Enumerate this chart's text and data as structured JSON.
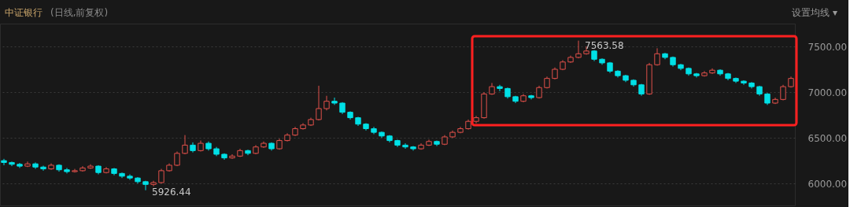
{
  "chart_data": {
    "type": "candlestick",
    "title": "中证银行",
    "subtitle": "(日线,前复权)",
    "annotations": [
      "7563.58",
      "5926.44",
      "设置均线 ▾"
    ],
    "categories": [
      null,
      null,
      null,
      null,
      null,
      null,
      null,
      null,
      null,
      null,
      null,
      null,
      null,
      null,
      null,
      null,
      null,
      null,
      null,
      null,
      null,
      null,
      null,
      null,
      null,
      null,
      null,
      null,
      null,
      null,
      null,
      null,
      null,
      null,
      null,
      null,
      null,
      null,
      null,
      null,
      null,
      null,
      null,
      null,
      null,
      null,
      null,
      null,
      null,
      null,
      null,
      null,
      null,
      null,
      null,
      null,
      null,
      null,
      null,
      null,
      null,
      null,
      null,
      null,
      null,
      null,
      null,
      null,
      null,
      null,
      null,
      null,
      null,
      null,
      null,
      null,
      null,
      null,
      null,
      null,
      null,
      null,
      null,
      null,
      null,
      null,
      null,
      null,
      null,
      null,
      null,
      null,
      null,
      null,
      null,
      null,
      null,
      null,
      null,
      null,
      null
    ],
    "ohlc": [
      [
        6250,
        6270,
        6200,
        6230
      ],
      [
        6230,
        6240,
        6190,
        6210
      ],
      [
        6210,
        6225,
        6170,
        6190
      ],
      [
        6190,
        6240,
        6180,
        6215
      ],
      [
        6215,
        6230,
        6160,
        6180
      ],
      [
        6180,
        6195,
        6140,
        6160
      ],
      [
        6160,
        6220,
        6150,
        6200
      ],
      [
        6200,
        6210,
        6130,
        6150
      ],
      [
        6150,
        6170,
        6110,
        6130
      ],
      [
        6130,
        6160,
        6120,
        6140
      ],
      [
        6140,
        6190,
        6130,
        6170
      ],
      [
        6170,
        6210,
        6160,
        6190
      ],
      [
        6190,
        6200,
        6100,
        6120
      ],
      [
        6120,
        6180,
        6110,
        6160
      ],
      [
        6160,
        6170,
        6090,
        6110
      ],
      [
        6110,
        6120,
        6060,
        6080
      ],
      [
        6080,
        6100,
        6040,
        6060
      ],
      [
        6060,
        6070,
        6000,
        6020
      ],
      [
        6020,
        6030,
        5926.44,
        5990
      ],
      [
        5990,
        6030,
        5970,
        6010
      ],
      [
        6010,
        6160,
        6000,
        6140
      ],
      [
        6140,
        6220,
        6130,
        6200
      ],
      [
        6200,
        6350,
        6190,
        6330
      ],
      [
        6330,
        6530,
        6320,
        6420
      ],
      [
        6420,
        6450,
        6340,
        6360
      ],
      [
        6360,
        6470,
        6350,
        6440
      ],
      [
        6440,
        6460,
        6360,
        6380
      ],
      [
        6380,
        6400,
        6300,
        6320
      ],
      [
        6320,
        6330,
        6260,
        6280
      ],
      [
        6280,
        6320,
        6270,
        6300
      ],
      [
        6300,
        6380,
        6290,
        6360
      ],
      [
        6360,
        6370,
        6310,
        6330
      ],
      [
        6330,
        6420,
        6320,
        6400
      ],
      [
        6400,
        6460,
        6390,
        6440
      ],
      [
        6440,
        6450,
        6360,
        6380
      ],
      [
        6380,
        6490,
        6370,
        6470
      ],
      [
        6470,
        6550,
        6460,
        6530
      ],
      [
        6530,
        6620,
        6520,
        6600
      ],
      [
        6600,
        6660,
        6590,
        6640
      ],
      [
        6640,
        6720,
        6630,
        6700
      ],
      [
        6700,
        7070,
        6690,
        6820
      ],
      [
        6820,
        6960,
        6800,
        6900
      ],
      [
        6900,
        6940,
        6860,
        6880
      ],
      [
        6880,
        6890,
        6760,
        6780
      ],
      [
        6780,
        6790,
        6700,
        6720
      ],
      [
        6720,
        6730,
        6630,
        6650
      ],
      [
        6650,
        6660,
        6580,
        6600
      ],
      [
        6600,
        6620,
        6540,
        6560
      ],
      [
        6560,
        6570,
        6500,
        6520
      ],
      [
        6520,
        6530,
        6450,
        6470
      ],
      [
        6470,
        6480,
        6400,
        6420
      ],
      [
        6420,
        6440,
        6380,
        6400
      ],
      [
        6400,
        6410,
        6360,
        6380
      ],
      [
        6380,
        6440,
        6370,
        6420
      ],
      [
        6420,
        6480,
        6410,
        6460
      ],
      [
        6460,
        6470,
        6410,
        6430
      ],
      [
        6430,
        6530,
        6420,
        6510
      ],
      [
        6510,
        6580,
        6500,
        6560
      ],
      [
        6560,
        6620,
        6550,
        6600
      ],
      [
        6600,
        6700,
        6590,
        6680
      ],
      [
        6680,
        6740,
        6660,
        6720
      ],
      [
        6720,
        7000,
        6710,
        6980
      ],
      [
        6980,
        7100,
        6970,
        7060
      ],
      [
        7060,
        7080,
        7010,
        7040
      ],
      [
        7040,
        7050,
        6930,
        6950
      ],
      [
        6950,
        6960,
        6880,
        6900
      ],
      [
        6900,
        6980,
        6890,
        6960
      ],
      [
        6960,
        6970,
        6920,
        6940
      ],
      [
        6940,
        7070,
        6930,
        7050
      ],
      [
        7050,
        7170,
        7040,
        7150
      ],
      [
        7150,
        7270,
        7140,
        7250
      ],
      [
        7250,
        7350,
        7240,
        7330
      ],
      [
        7330,
        7400,
        7320,
        7380
      ],
      [
        7380,
        7563.58,
        7370,
        7420
      ],
      [
        7420,
        7500,
        7410,
        7450
      ],
      [
        7450,
        7460,
        7340,
        7360
      ],
      [
        7360,
        7370,
        7300,
        7320
      ],
      [
        7320,
        7330,
        7210,
        7230
      ],
      [
        7230,
        7240,
        7160,
        7180
      ],
      [
        7180,
        7190,
        7110,
        7130
      ],
      [
        7130,
        7140,
        7060,
        7080
      ],
      [
        7080,
        7090,
        6960,
        6980
      ],
      [
        6980,
        7320,
        6970,
        7300
      ],
      [
        7300,
        7480,
        7290,
        7420
      ],
      [
        7420,
        7430,
        7360,
        7380
      ],
      [
        7380,
        7390,
        7280,
        7300
      ],
      [
        7300,
        7310,
        7240,
        7260
      ],
      [
        7260,
        7270,
        7180,
        7200
      ],
      [
        7200,
        7210,
        7160,
        7180
      ],
      [
        7180,
        7230,
        7170,
        7210
      ],
      [
        7210,
        7260,
        7200,
        7240
      ],
      [
        7240,
        7250,
        7180,
        7200
      ],
      [
        7200,
        7210,
        7130,
        7150
      ],
      [
        7150,
        7160,
        7100,
        7120
      ],
      [
        7120,
        7130,
        7080,
        7100
      ],
      [
        7100,
        7110,
        7040,
        7060
      ],
      [
        7060,
        7070,
        6960,
        6980
      ],
      [
        6980,
        6990,
        6860,
        6880
      ],
      [
        6880,
        6940,
        6870,
        6920
      ],
      [
        6920,
        7080,
        6910,
        7060
      ],
      [
        7060,
        7170,
        7050,
        7150
      ]
    ],
    "ylim": [
      5760,
      7750
    ],
    "yticks": [
      {
        "value": 6000,
        "label": "6000.00"
      },
      {
        "value": 6500,
        "label": "6500.00"
      },
      {
        "value": 7000,
        "label": "7000.00"
      },
      {
        "value": 7500,
        "label": "7500.00"
      }
    ],
    "grid": "y",
    "tick_labels": "y",
    "legend": false
  }
}
